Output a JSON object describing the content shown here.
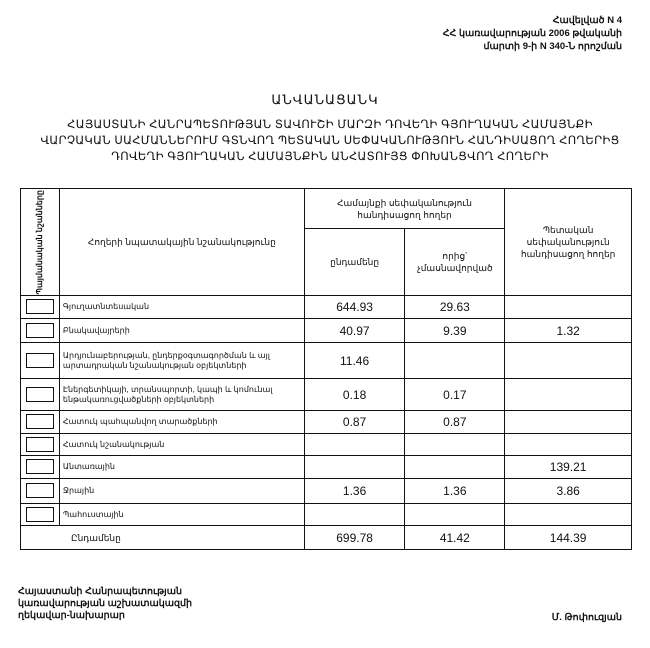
{
  "annex": {
    "line1": "Հավելված N 4",
    "line2": "ՀՀ կառավարության 2006 թվականի",
    "line3": "մարտի 9-ի N 340-Ն որոշման"
  },
  "title": "ԱՆՎԱՆԱՑԱՆԿ",
  "subtitle": "ՀԱՅԱՍՏԱՆԻ ՀԱՆՐԱՊԵՏՈՒԹՅԱՆ ՏԱՎՈՒՇԻ ՄԱՐԶԻ ԴՈՎԵՂԻ ԳՅՈՒՂԱԿԱՆ ՀԱՄԱՅՆՔԻ ՎԱՐՉԱԿԱՆ ՍԱՀՄԱՆՆԵՐՈՒՄ ԳՏՆՎՈՂ ՊԵՏԱԿԱՆ ՍԵՓԱԿԱՆՈՒԹՅՈՒՆ ՀԱՆԴԻՍԱՑՈՂ ՀՈՂԵՐԻՑ ԴՈՎԵՂԻ ԳՅՈՒՂԱԿԱՆ ՀԱՄԱՅՆՔԻՆ ԱՆՀԱՏՈՒՅՑ ՓՈԽԱՆՑՎՈՂ ՀՈՂԵՐԻ",
  "table": {
    "headers": {
      "legend": "Պայմանական նշանները",
      "purpose": "Հողերի նպատակային նշանակությունը",
      "community": "Համայնքի սեփականություն հանդիսացող հողեր",
      "total": "ընդամենը",
      "of_which": "որից՝ չմասնավորված",
      "state": "Պետական սեփականություն հանդիսացող հողեր"
    },
    "rows": [
      {
        "name": "Գյուղատնտեսական",
        "total": "644.93",
        "of_which": "29.63",
        "state": ""
      },
      {
        "name": "Բնակավայրերի",
        "total": "40.97",
        "of_which": "9.39",
        "state": "1.32"
      },
      {
        "name": "Արդյունաբերության, ընդերքօգտագործման և այլ արտադրական նշանակության օբյեկտների",
        "total": "11.46",
        "of_which": "",
        "state": ""
      },
      {
        "name": "Էներգետիկայի, տրանսպորտի, կապի և կոմունալ ենթակառուցվածքների օբյեկտների",
        "total": "0.18",
        "of_which": "0.17",
        "state": ""
      },
      {
        "name": "Հատուկ պահպանվող տարածքների",
        "total": "0.87",
        "of_which": "0.87",
        "state": ""
      },
      {
        "name": "Հատուկ նշանակության",
        "total": "",
        "of_which": "",
        "state": ""
      },
      {
        "name": "Անտառային",
        "total": "",
        "of_which": "",
        "state": "139.21"
      },
      {
        "name": "Ջրային",
        "total": "1.36",
        "of_which": "1.36",
        "state": "3.86"
      },
      {
        "name": "Պահուստային",
        "total": "",
        "of_which": "",
        "state": ""
      }
    ],
    "totals": {
      "name": "Ընդամենը",
      "total": "699.78",
      "of_which": "41.42",
      "state": "144.39"
    }
  },
  "footer": {
    "position_line1": "Հայաստանի Հանրապետության",
    "position_line2": "կառավարության աշխատակազմի",
    "position_line3": "ղեկավար-նախարար",
    "signatory": "Մ. Թոփուզյան"
  }
}
